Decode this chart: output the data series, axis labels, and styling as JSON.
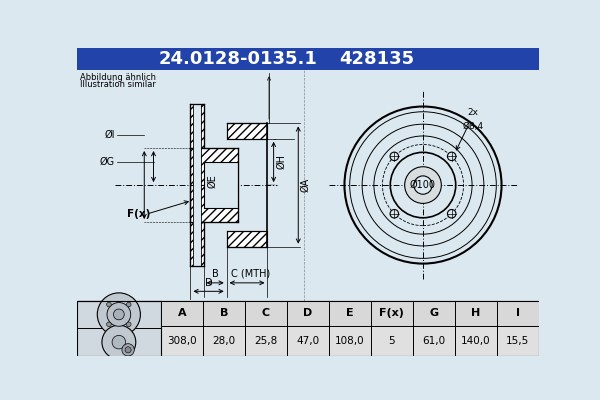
{
  "title_part": "24.0128-0135.1",
  "title_code": "428135",
  "title_bg": "#2244aa",
  "title_text_color": "#ffffff",
  "subtitle1": "Abbildung ähnlich",
  "subtitle2": "Illustration similar",
  "table_headers": [
    "A",
    "B",
    "C",
    "D",
    "E",
    "F(x)",
    "G",
    "H",
    "I"
  ],
  "table_values": [
    "308,0",
    "28,0",
    "25,8",
    "47,0",
    "108,0",
    "5",
    "61,0",
    "140,0",
    "15,5"
  ],
  "bg_color": "#dce8f0",
  "line_color": "#000000",
  "white": "#ffffff",
  "gray_table": "#e0e0e0"
}
